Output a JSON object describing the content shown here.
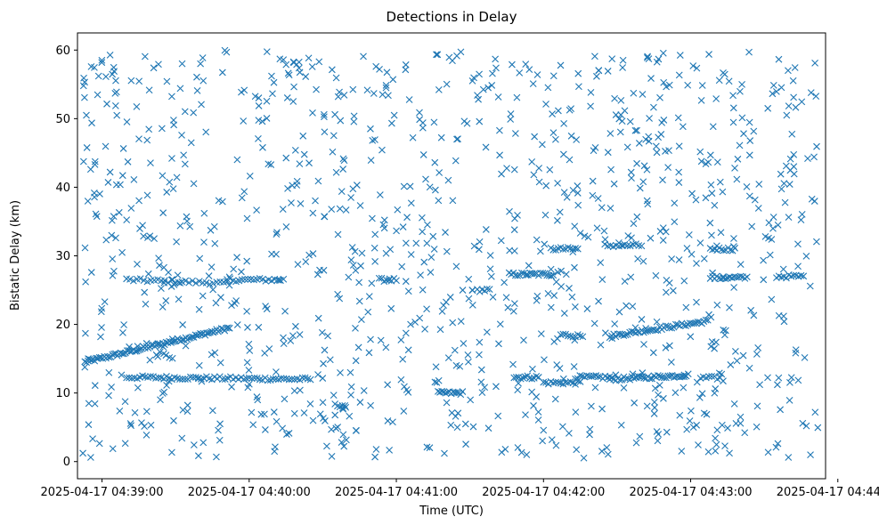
{
  "chart_data": {
    "type": "scatter",
    "title": "Detections in Delay",
    "xlabel": "Time (UTC)",
    "ylabel": "Bistatic Delay (km)",
    "marker": "x",
    "color": "#1f77b4",
    "grid": false,
    "xlim": [
      "2025-04-17 04:38:50",
      "2025-04-17 04:43:55"
    ],
    "ylim": [
      -2.5,
      62.5
    ],
    "x_ticks": [
      "2025-04-17 04:39:00",
      "2025-04-17 04:40:00",
      "2025-04-17 04:41:00",
      "2025-04-17 04:42:00",
      "2025-04-17 04:43:00",
      "2025-04-17 04:44:00"
    ],
    "y_ticks": [
      0,
      10,
      20,
      30,
      40,
      50,
      60
    ],
    "tracks": [
      {
        "x_start": "2025-04-17 04:38:53",
        "x_end": "2025-04-17 04:39:52",
        "y_start": 14.5,
        "y_end": 19.5,
        "count": 90
      },
      {
        "x_start": "2025-04-17 04:39:10",
        "x_end": "2025-04-17 04:39:51",
        "y_start": 26.5,
        "y_end": 26.0,
        "count": 30
      },
      {
        "x_start": "2025-04-17 04:39:51",
        "x_end": "2025-04-17 04:40:14",
        "y_start": 26.5,
        "y_end": 26.5,
        "count": 20
      },
      {
        "x_start": "2025-04-17 04:39:10",
        "x_end": "2025-04-17 04:40:25",
        "y_start": 12.3,
        "y_end": 12.0,
        "count": 70
      },
      {
        "x_start": "2025-04-17 04:40:35",
        "x_end": "2025-04-17 04:40:39",
        "y_start": 8.2,
        "y_end": 8.2,
        "count": 5
      },
      {
        "x_start": "2025-04-17 04:40:53",
        "x_end": "2025-04-17 04:41:00",
        "y_start": 26.5,
        "y_end": 26.5,
        "count": 8
      },
      {
        "x_start": "2025-04-17 04:41:17",
        "x_end": "2025-04-17 04:41:27",
        "y_start": 10.0,
        "y_end": 10.0,
        "count": 14
      },
      {
        "x_start": "2025-04-17 04:41:33",
        "x_end": "2025-04-17 04:41:38",
        "y_start": 25.0,
        "y_end": 25.0,
        "count": 6
      },
      {
        "x_start": "2025-04-17 04:41:46",
        "x_end": "2025-04-17 04:42:04",
        "y_start": 27.3,
        "y_end": 27.3,
        "count": 22
      },
      {
        "x_start": "2025-04-17 04:41:48",
        "x_end": "2025-04-17 04:41:58",
        "y_start": 12.3,
        "y_end": 12.3,
        "count": 12
      },
      {
        "x_start": "2025-04-17 04:42:00",
        "x_end": "2025-04-17 04:42:15",
        "y_start": 11.5,
        "y_end": 11.5,
        "count": 16
      },
      {
        "x_start": "2025-04-17 04:42:03",
        "x_end": "2025-04-17 04:42:14",
        "y_start": 31.0,
        "y_end": 31.0,
        "count": 12
      },
      {
        "x_start": "2025-04-17 04:42:07",
        "x_end": "2025-04-17 04:42:16",
        "y_start": 18.5,
        "y_end": 18.3,
        "count": 10
      },
      {
        "x_start": "2025-04-17 04:42:13",
        "x_end": "2025-04-17 04:42:27",
        "y_start": 12.3,
        "y_end": 12.3,
        "count": 16
      },
      {
        "x_start": "2025-04-17 04:42:27",
        "x_end": "2025-04-17 04:42:59",
        "y_start": 12.0,
        "y_end": 12.6,
        "count": 40
      },
      {
        "x_start": "2025-04-17 04:42:27",
        "x_end": "2025-04-17 04:43:07",
        "y_start": 18.3,
        "y_end": 20.5,
        "count": 50
      },
      {
        "x_start": "2025-04-17 04:42:25",
        "x_end": "2025-04-17 04:42:40",
        "y_start": 31.5,
        "y_end": 31.5,
        "count": 14
      },
      {
        "x_start": "2025-04-17 04:43:04",
        "x_end": "2025-04-17 04:43:12",
        "y_start": 12.2,
        "y_end": 12.2,
        "count": 8
      },
      {
        "x_start": "2025-04-17 04:43:08",
        "x_end": "2025-04-17 04:43:18",
        "y_start": 31.0,
        "y_end": 31.0,
        "count": 12
      },
      {
        "x_start": "2025-04-17 04:43:08",
        "x_end": "2025-04-17 04:43:23",
        "y_start": 26.8,
        "y_end": 26.8,
        "count": 18
      },
      {
        "x_start": "2025-04-17 04:43:35",
        "x_end": "2025-04-17 04:43:46",
        "y_start": 27.0,
        "y_end": 27.0,
        "count": 12
      }
    ],
    "scatter": {
      "x_start": "2025-04-17 04:38:52",
      "x_end": "2025-04-17 04:43:52",
      "y_min": 0.5,
      "y_max": 60,
      "count": 1100
    }
  }
}
